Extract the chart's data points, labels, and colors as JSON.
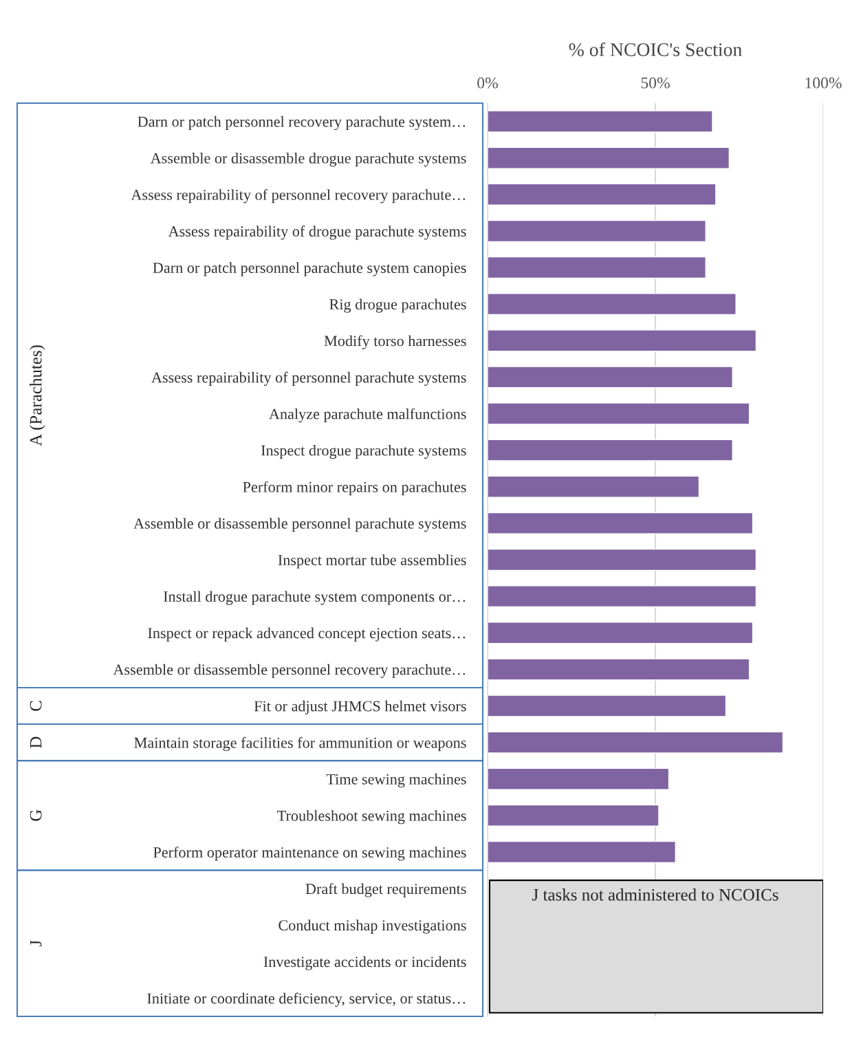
{
  "chart_data": {
    "type": "bar",
    "orientation": "horizontal",
    "xlabel": "% of NCOIC's Section",
    "categories": [
      "Darn or patch personnel recovery parachute system…",
      "Assemble or disassemble drogue parachute systems",
      "Assess repairability of personnel recovery parachute…",
      "Assess repairability of drogue parachute systems",
      "Darn or patch personnel parachute system canopies",
      "Rig drogue parachutes",
      "Modify torso harnesses",
      "Assess repairability of personnel parachute systems",
      "Analyze parachute malfunctions",
      "Inspect drogue parachute systems",
      "Perform minor repairs on parachutes",
      "Assemble or disassemble personnel parachute systems",
      "Inspect mortar tube assemblies",
      "Install drogue parachute system components or…",
      "Inspect or repack advanced concept ejection seats…",
      "Assemble or disassemble personnel recovery parachute…",
      "Fit or adjust JHMCS helmet visors",
      "Maintain storage facilities for ammunition or weapons",
      "Time sewing machines",
      "Troubleshoot sewing machines",
      "Perform operator maintenance on sewing machines",
      "Draft budget requirements",
      "Conduct mishap investigations",
      "Investigate accidents or incidents",
      "Initiate or coordinate deficiency, service, or status…"
    ],
    "values": [
      67,
      72,
      68,
      65,
      65,
      74,
      80,
      73,
      78,
      73,
      63,
      79,
      80,
      80,
      79,
      78,
      71,
      88,
      54,
      51,
      56,
      null,
      null,
      null,
      null
    ],
    "color": "#8064a2",
    "xlim": [
      0,
      100
    ],
    "xticks": [
      {
        "value": 0,
        "label": "0%"
      },
      {
        "value": 50,
        "label": "50%"
      },
      {
        "value": 100,
        "label": "100%"
      }
    ],
    "grid": "x",
    "annotations": [
      "J tasks not administered to NCOICs",
      "A (Parachutes)",
      "C",
      "D",
      "G",
      "J"
    ]
  }
}
